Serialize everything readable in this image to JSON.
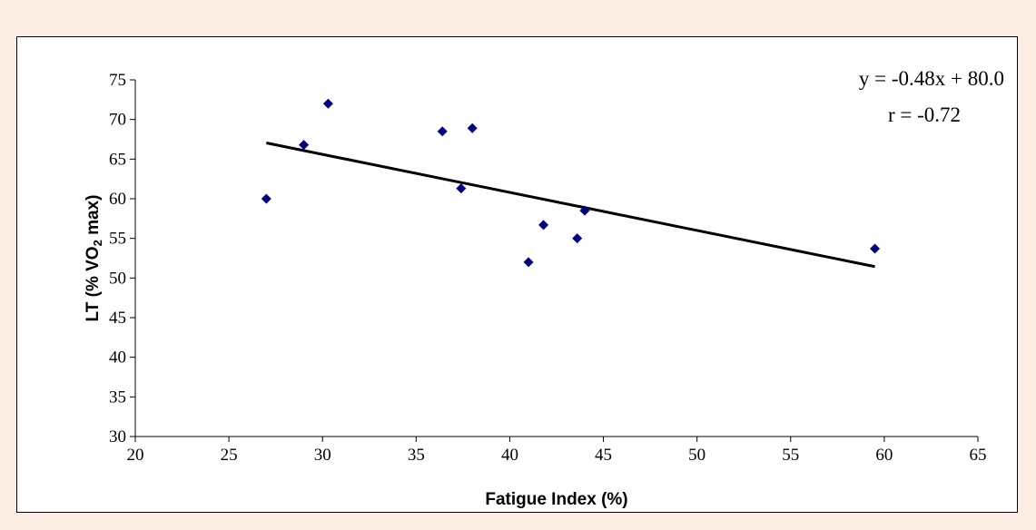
{
  "chart_data": {
    "type": "scatter",
    "xlabel": "Fatigue Index (%)",
    "ylabel": "LT (% VO2 max)",
    "xlim": [
      20,
      65
    ],
    "ylim": [
      30,
      75
    ],
    "x_ticks": [
      20,
      25,
      30,
      35,
      40,
      45,
      50,
      55,
      60,
      65
    ],
    "y_ticks": [
      30,
      35,
      40,
      45,
      50,
      55,
      60,
      65,
      70,
      75
    ],
    "grid": false,
    "points": [
      {
        "x": 27.0,
        "y": 60.0
      },
      {
        "x": 29.0,
        "y": 66.8
      },
      {
        "x": 30.3,
        "y": 72.0
      },
      {
        "x": 36.4,
        "y": 68.5
      },
      {
        "x": 37.4,
        "y": 61.3
      },
      {
        "x": 38.0,
        "y": 68.9
      },
      {
        "x": 41.0,
        "y": 52.0
      },
      {
        "x": 41.8,
        "y": 56.7
      },
      {
        "x": 43.6,
        "y": 55.0
      },
      {
        "x": 44.0,
        "y": 58.5
      },
      {
        "x": 59.5,
        "y": 53.7
      }
    ],
    "trendline": {
      "x_start": 27.0,
      "x_end": 59.5,
      "slope": -0.48,
      "intercept": 80.0
    },
    "marker_color": "#00007f",
    "annotations": {
      "equation": "y = -0.48x + 80.0",
      "r": "r = -0.72"
    }
  }
}
